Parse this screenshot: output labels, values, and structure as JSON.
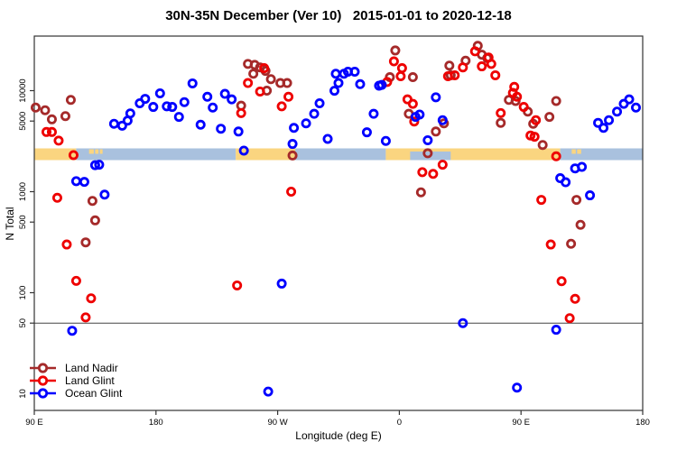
{
  "title": "30N-35N December (Ver 10)   2015-01-01 to 2020-12-18",
  "colors": {
    "land_nadir": "#A52A2A",
    "land_glint": "#EE0000",
    "ocean_glint": "#0000FF",
    "strip_land": "#FAD580",
    "strip_ocean": "#A9C1DE",
    "ref_line": "#444444",
    "axis": "#333333",
    "text": "#000000"
  },
  "chart_data": {
    "type": "scatter",
    "title": "30N-35N December (Ver 10)   2015-01-01 to 2020-12-18",
    "xlabel": "Longitude (deg E)",
    "ylabel": "N Total",
    "log_y": true,
    "ylim": [
      7,
      35000
    ],
    "x_axis_note": "wrapped longitude axis spanning 450 deg: 90E -> 180 -> 90W -> 0 -> 90E -> 180; point x = degrees east of left edge (90E)",
    "x_range": [
      0,
      450
    ],
    "x_ticks": [
      {
        "pos": 0,
        "label": "90 E"
      },
      {
        "pos": 90,
        "label": "180"
      },
      {
        "pos": 180,
        "label": "90 W"
      },
      {
        "pos": 270,
        "label": "0"
      },
      {
        "pos": 360,
        "label": "90 E"
      },
      {
        "pos": 450,
        "label": "180"
      }
    ],
    "y_ticks": [
      10,
      50,
      100,
      500,
      1000,
      5000,
      10000
    ],
    "ref_line_y": 50,
    "grid": false,
    "legend_position": "bottom-left",
    "strip": {
      "description": "land/ocean map strip drawn across plot at N ~2100-2750",
      "value_range": [
        2100,
        2750
      ],
      "segments": [
        {
          "surface": "land",
          "from": 0,
          "to": 31
        },
        {
          "surface": "ocean",
          "from": 31,
          "to": 149
        },
        {
          "surface": "land",
          "from": 149,
          "to": 193
        },
        {
          "surface": "ocean",
          "from": 193,
          "to": 260
        },
        {
          "surface": "land",
          "from": 260,
          "to": 389
        },
        {
          "surface": "ocean",
          "from": 389,
          "to": 450
        }
      ],
      "islands": [
        {
          "from": 40.5,
          "to": 44
        },
        {
          "from": 45,
          "to": 47.5
        },
        {
          "from": 48.5,
          "to": 50.5
        },
        {
          "from": 397.5,
          "to": 400.5
        },
        {
          "from": 401.5,
          "to": 404.5
        }
      ],
      "sea_patch": {
        "from": 278,
        "to": 308
      }
    },
    "series": [
      {
        "name": "Land Nadir",
        "color": "#A52A2A",
        "points": [
          [
            1,
            6800
          ],
          [
            8,
            6400
          ],
          [
            13,
            5200
          ],
          [
            23,
            5600
          ],
          [
            27,
            8100
          ],
          [
            38,
            315
          ],
          [
            43,
            810
          ],
          [
            45,
            520
          ],
          [
            153,
            7100
          ],
          [
            158,
            18400
          ],
          [
            162,
            14700
          ],
          [
            163,
            18000
          ],
          [
            167,
            17000
          ],
          [
            171,
            15700
          ],
          [
            172,
            10000
          ],
          [
            175,
            13000
          ],
          [
            182,
            11900
          ],
          [
            187,
            11900
          ],
          [
            191,
            2280
          ],
          [
            263,
            13600
          ],
          [
            267,
            25000
          ],
          [
            277,
            5900
          ],
          [
            280,
            13600
          ],
          [
            286,
            985
          ],
          [
            291,
            2400
          ],
          [
            297,
            3940
          ],
          [
            303,
            4750
          ],
          [
            307,
            17700
          ],
          [
            308,
            14200
          ],
          [
            319,
            19800
          ],
          [
            328,
            27800
          ],
          [
            331,
            22700
          ],
          [
            335,
            21000
          ],
          [
            345,
            4800
          ],
          [
            351,
            8100
          ],
          [
            356,
            7900
          ],
          [
            365,
            6200
          ],
          [
            369,
            4700
          ],
          [
            376,
            2900
          ],
          [
            381,
            5500
          ],
          [
            386,
            7900
          ],
          [
            397,
            305
          ],
          [
            401,
            830
          ],
          [
            404,
            470
          ]
        ]
      },
      {
        "name": "Land Glint",
        "color": "#EE0000",
        "points": [
          [
            9,
            3900
          ],
          [
            13,
            3900
          ],
          [
            18,
            3200
          ],
          [
            29,
            2300
          ],
          [
            17,
            870
          ],
          [
            24,
            300
          ],
          [
            31,
            131
          ],
          [
            38,
            57
          ],
          [
            42,
            88
          ],
          [
            150,
            118
          ],
          [
            153,
            6000
          ],
          [
            158,
            11900
          ],
          [
            167,
            9800
          ],
          [
            170,
            16700
          ],
          [
            183,
            7000
          ],
          [
            188,
            8700
          ],
          [
            190,
            1000
          ],
          [
            261,
            12200
          ],
          [
            266,
            19500
          ],
          [
            271,
            13900
          ],
          [
            272,
            16700
          ],
          [
            276,
            8200
          ],
          [
            280,
            7400
          ],
          [
            281,
            4950
          ],
          [
            287,
            1560
          ],
          [
            295,
            1500
          ],
          [
            302,
            1850
          ],
          [
            306,
            13900
          ],
          [
            311,
            14200
          ],
          [
            317,
            17000
          ],
          [
            326,
            24500
          ],
          [
            331,
            17400
          ],
          [
            336,
            21300
          ],
          [
            338,
            18400
          ],
          [
            341,
            14200
          ],
          [
            345,
            6000
          ],
          [
            354,
            9500
          ],
          [
            355,
            10900
          ],
          [
            357,
            8700
          ],
          [
            362,
            6900
          ],
          [
            367,
            3600
          ],
          [
            370,
            3500
          ],
          [
            371,
            5100
          ],
          [
            375,
            830
          ],
          [
            382,
            300
          ],
          [
            386,
            2240
          ],
          [
            390,
            130
          ],
          [
            396,
            56
          ],
          [
            400,
            87
          ]
        ]
      },
      {
        "name": "Ocean Glint",
        "color": "#0000FF",
        "points": [
          [
            28,
            42
          ],
          [
            31,
            1270
          ],
          [
            37,
            1250
          ],
          [
            45,
            1830
          ],
          [
            48,
            1850
          ],
          [
            52,
            935
          ],
          [
            59,
            4700
          ],
          [
            65,
            4500
          ],
          [
            69,
            5050
          ],
          [
            71,
            5950
          ],
          [
            78,
            7500
          ],
          [
            82,
            8300
          ],
          [
            88,
            6900
          ],
          [
            93,
            9400
          ],
          [
            98,
            7000
          ],
          [
            102,
            6900
          ],
          [
            107,
            5500
          ],
          [
            111,
            7700
          ],
          [
            117,
            11800
          ],
          [
            123,
            4600
          ],
          [
            128,
            8700
          ],
          [
            132,
            6800
          ],
          [
            138,
            4200
          ],
          [
            141,
            9300
          ],
          [
            146,
            8200
          ],
          [
            151,
            3940
          ],
          [
            155,
            2550
          ],
          [
            173,
            10.5
          ],
          [
            183,
            123
          ],
          [
            191,
            2970
          ],
          [
            192,
            4280
          ],
          [
            201,
            4750
          ],
          [
            207,
            5900
          ],
          [
            211,
            7500
          ],
          [
            217,
            3330
          ],
          [
            222,
            9980
          ],
          [
            223,
            14700
          ],
          [
            225,
            11900
          ],
          [
            229,
            14700
          ],
          [
            232,
            15400
          ],
          [
            237,
            15400
          ],
          [
            241,
            11600
          ],
          [
            246,
            3870
          ],
          [
            251,
            5900
          ],
          [
            255,
            11200
          ],
          [
            257,
            11400
          ],
          [
            260,
            3180
          ],
          [
            282,
            5500
          ],
          [
            285,
            5800
          ],
          [
            291,
            3230
          ],
          [
            297,
            8600
          ],
          [
            302,
            5100
          ],
          [
            317,
            50
          ],
          [
            357,
            11.5
          ],
          [
            386,
            43
          ],
          [
            389,
            1360
          ],
          [
            393,
            1240
          ],
          [
            400,
            1700
          ],
          [
            405,
            1760
          ],
          [
            411,
            920
          ],
          [
            417,
            4800
          ],
          [
            421,
            4280
          ],
          [
            425,
            5100
          ],
          [
            431,
            6200
          ],
          [
            436,
            7400
          ],
          [
            440,
            8200
          ],
          [
            445,
            6800
          ]
        ]
      }
    ]
  },
  "legend": {
    "items": [
      {
        "label": "Land Nadir"
      },
      {
        "label": "Land Glint"
      },
      {
        "label": "Ocean Glint"
      }
    ]
  }
}
